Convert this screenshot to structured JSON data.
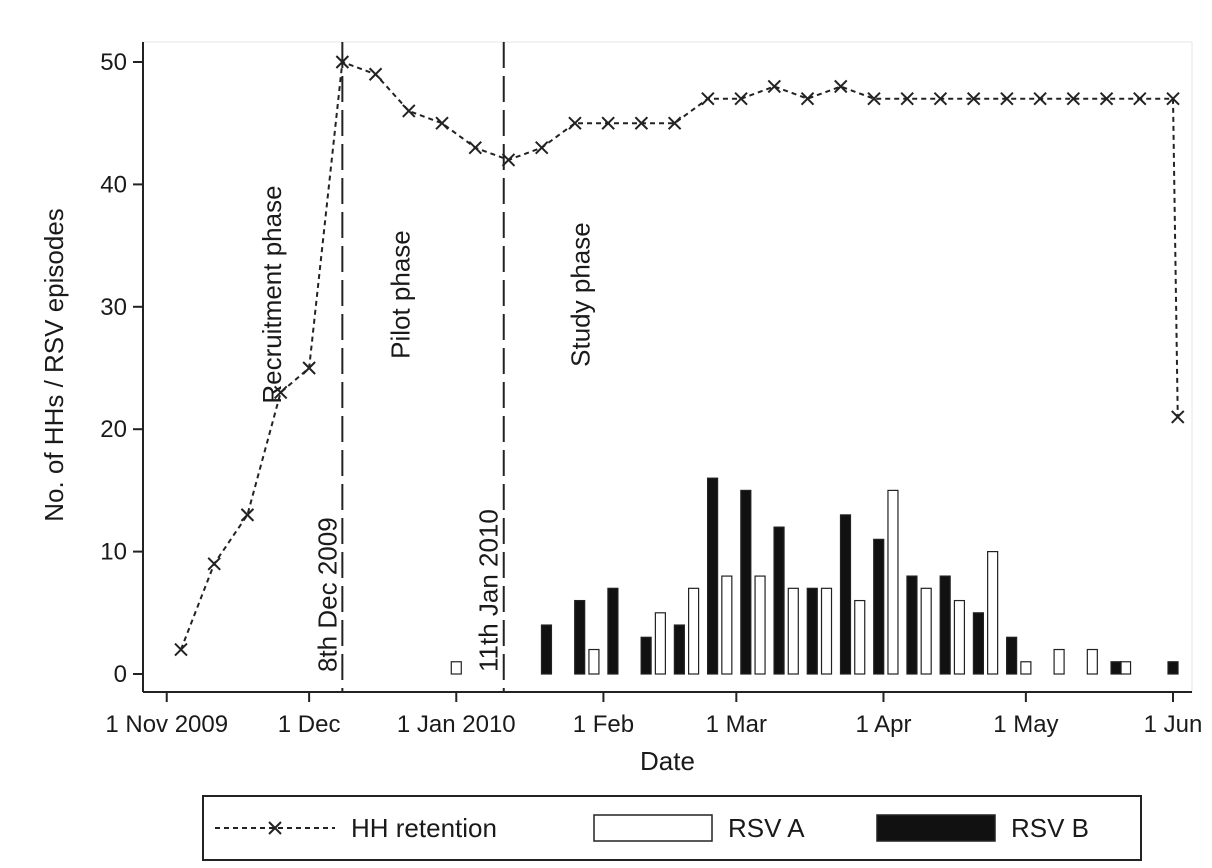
{
  "chart_data": {
    "type": "bar+line",
    "xlabel": "Date",
    "ylabel": "No. of HHs / RSV episodes",
    "ylim": [
      0,
      52
    ],
    "xlim": [
      "2009-10-27",
      "2010-06-05"
    ],
    "y_ticks": [
      0,
      10,
      20,
      30,
      40,
      50
    ],
    "x_ticks": [
      {
        "date": "2009-11-01",
        "label": "1 Nov 2009"
      },
      {
        "date": "2009-12-01",
        "label": "1 Dec"
      },
      {
        "date": "2010-01-01",
        "label": "1 Jan 2010"
      },
      {
        "date": "2010-02-01",
        "label": "1 Feb"
      },
      {
        "date": "2010-03-01",
        "label": "1 Mar"
      },
      {
        "date": "2010-04-01",
        "label": "1 Apr"
      },
      {
        "date": "2010-05-01",
        "label": "1 May"
      },
      {
        "date": "2010-06-01",
        "label": "1 Jun"
      }
    ],
    "grid": false,
    "legend_placement": "bottom",
    "phase_lines": [
      {
        "date": "2009-12-08",
        "label": "8th Dec 2009"
      },
      {
        "date": "2010-01-11",
        "label": "11th Jan 2010"
      }
    ],
    "phase_labels": [
      {
        "label": "Recruitment phase",
        "date": "2009-11-23",
        "y": 31
      },
      {
        "label": "Pilot phase",
        "date": "2009-12-20",
        "y": 31
      },
      {
        "label": "Study phase",
        "date": "2010-01-27",
        "y": 31
      }
    ],
    "series": [
      {
        "name": "HH retention",
        "kind": "line",
        "points": [
          {
            "x": "2009-11-04",
            "y": 2
          },
          {
            "x": "2009-11-11",
            "y": 9
          },
          {
            "x": "2009-11-18",
            "y": 13
          },
          {
            "x": "2009-11-25",
            "y": 23
          },
          {
            "x": "2009-12-01",
            "y": 25
          },
          {
            "x": "2009-12-08",
            "y": 50
          },
          {
            "x": "2009-12-15",
            "y": 49
          },
          {
            "x": "2009-12-22",
            "y": 46
          },
          {
            "x": "2009-12-29",
            "y": 45
          },
          {
            "x": "2010-01-05",
            "y": 43
          },
          {
            "x": "2010-01-12",
            "y": 42
          },
          {
            "x": "2010-01-19",
            "y": 43
          },
          {
            "x": "2010-01-26",
            "y": 45
          },
          {
            "x": "2010-02-02",
            "y": 45
          },
          {
            "x": "2010-02-09",
            "y": 45
          },
          {
            "x": "2010-02-16",
            "y": 45
          },
          {
            "x": "2010-02-23",
            "y": 47
          },
          {
            "x": "2010-03-02",
            "y": 47
          },
          {
            "x": "2010-03-09",
            "y": 48
          },
          {
            "x": "2010-03-16",
            "y": 47
          },
          {
            "x": "2010-03-23",
            "y": 48
          },
          {
            "x": "2010-03-30",
            "y": 47
          },
          {
            "x": "2010-04-06",
            "y": 47
          },
          {
            "x": "2010-04-13",
            "y": 47
          },
          {
            "x": "2010-04-20",
            "y": 47
          },
          {
            "x": "2010-04-27",
            "y": 47
          },
          {
            "x": "2010-05-04",
            "y": 47
          },
          {
            "x": "2010-05-11",
            "y": 47
          },
          {
            "x": "2010-05-18",
            "y": 47
          },
          {
            "x": "2010-05-25",
            "y": 47
          },
          {
            "x": "2010-06-01",
            "y": 47
          },
          {
            "x": "2010-06-02",
            "y": 21
          }
        ]
      },
      {
        "name": "RSV A",
        "kind": "bar",
        "fill": "#ffffff",
        "points": [
          {
            "x": "2010-01-01",
            "y": 1
          },
          {
            "x": "2010-01-30",
            "y": 2
          },
          {
            "x": "2010-02-13",
            "y": 5
          },
          {
            "x": "2010-02-20",
            "y": 7
          },
          {
            "x": "2010-02-27",
            "y": 8
          },
          {
            "x": "2010-03-06",
            "y": 8
          },
          {
            "x": "2010-03-13",
            "y": 7
          },
          {
            "x": "2010-03-20",
            "y": 7
          },
          {
            "x": "2010-03-27",
            "y": 6
          },
          {
            "x": "2010-04-03",
            "y": 15
          },
          {
            "x": "2010-04-10",
            "y": 7
          },
          {
            "x": "2010-04-17",
            "y": 6
          },
          {
            "x": "2010-04-24",
            "y": 10
          },
          {
            "x": "2010-05-01",
            "y": 1
          },
          {
            "x": "2010-05-08",
            "y": 2
          },
          {
            "x": "2010-05-15",
            "y": 2
          },
          {
            "x": "2010-05-22",
            "y": 1
          }
        ]
      },
      {
        "name": "RSV B",
        "kind": "bar",
        "fill": "#111111",
        "points": [
          {
            "x": "2010-01-20",
            "y": 4
          },
          {
            "x": "2010-01-27",
            "y": 6
          },
          {
            "x": "2010-02-03",
            "y": 7
          },
          {
            "x": "2010-02-10",
            "y": 3
          },
          {
            "x": "2010-02-17",
            "y": 4
          },
          {
            "x": "2010-02-24",
            "y": 16
          },
          {
            "x": "2010-03-03",
            "y": 15
          },
          {
            "x": "2010-03-10",
            "y": 12
          },
          {
            "x": "2010-03-17",
            "y": 7
          },
          {
            "x": "2010-03-24",
            "y": 13
          },
          {
            "x": "2010-03-31",
            "y": 11
          },
          {
            "x": "2010-04-07",
            "y": 8
          },
          {
            "x": "2010-04-14",
            "y": 8
          },
          {
            "x": "2010-04-21",
            "y": 5
          },
          {
            "x": "2010-04-28",
            "y": 3
          },
          {
            "x": "2010-05-20",
            "y": 1
          },
          {
            "x": "2010-06-01",
            "y": 1
          }
        ]
      }
    ]
  }
}
